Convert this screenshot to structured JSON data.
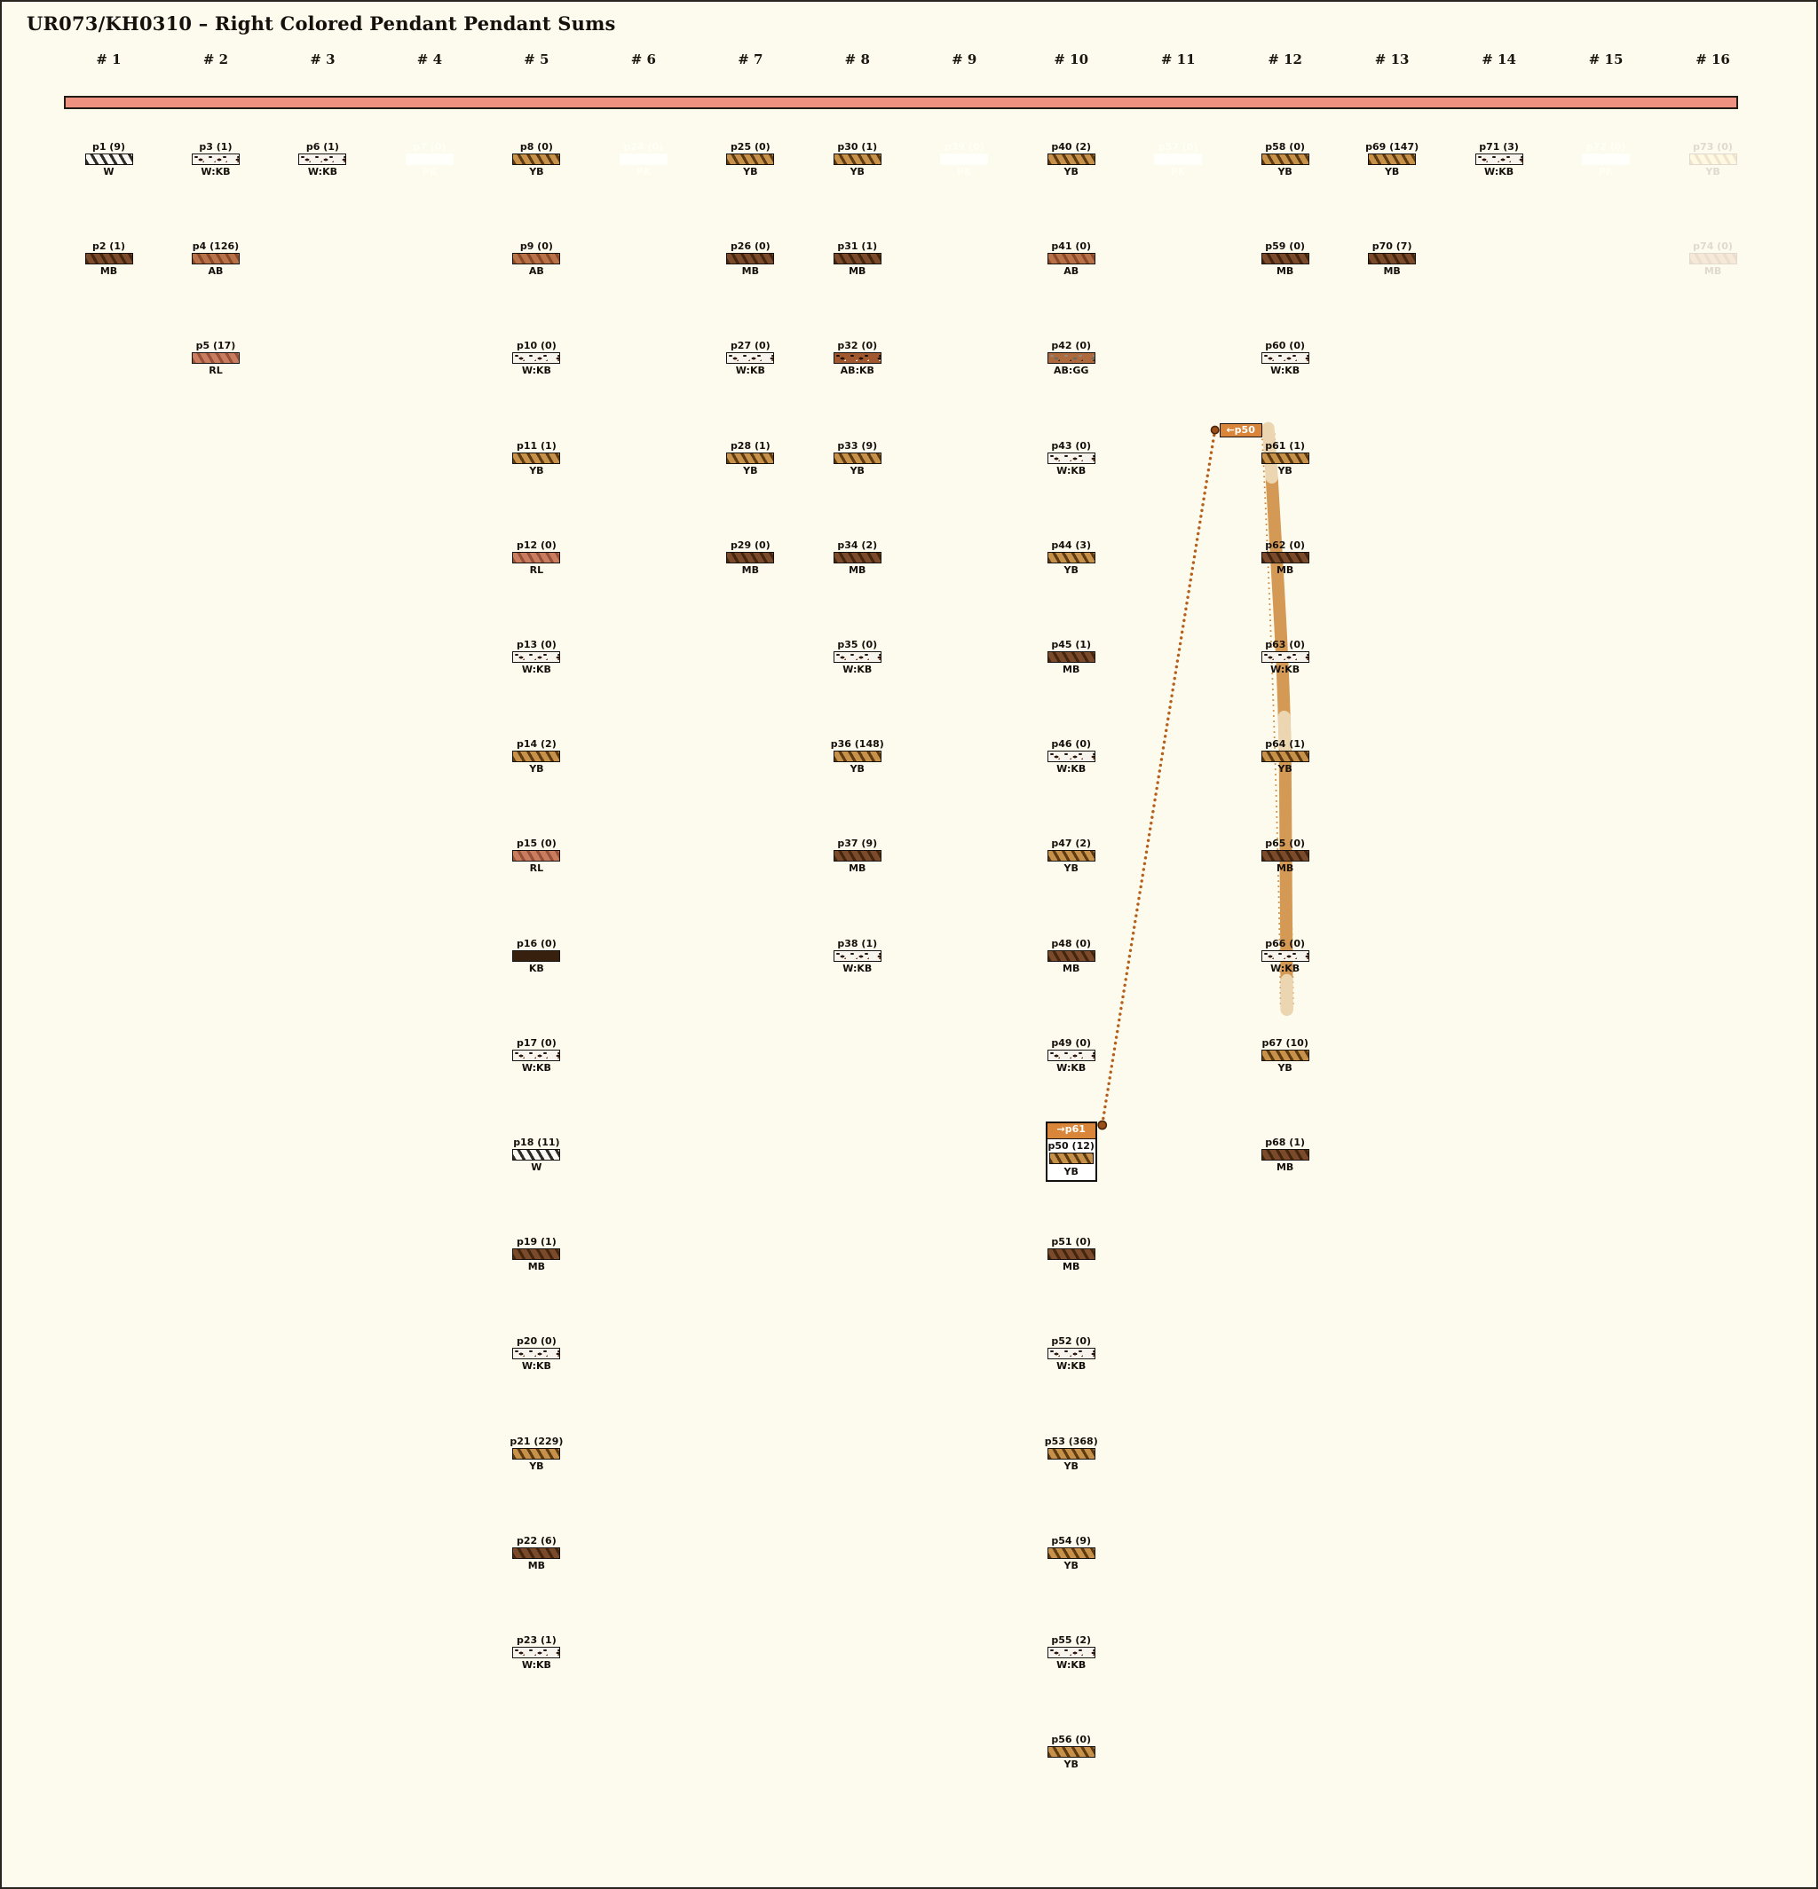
{
  "title": "UR073/KH0310 – Right Colored Pendant Pendant Sums",
  "columns": [
    "# 1",
    "# 2",
    "# 3",
    "# 4",
    "# 5",
    "# 6",
    "# 7",
    "# 8",
    "# 9",
    "# 10",
    "# 11",
    "# 12",
    "# 13",
    "# 14",
    "# 15",
    "# 16"
  ],
  "palette": {
    "background": "#fcfbee",
    "canvas_border": "#2a241e",
    "top_bar": "#ef9180",
    "tag_orange": "#d9863a",
    "connector_dotted": "#b55f1a",
    "flow_band_tan": "#d49a55",
    "flow_band_cream": "#ecd6b2",
    "band_edge_dots": "#c2741f",
    "dot_fill": "#9a4f18",
    "dot_ring": "#4c2408",
    "text_dark": "#16100c",
    "pk_text": "#e9c4b2"
  },
  "swatch_codes": {
    "W": {
      "style": "striped",
      "body": "#faf8f2",
      "stripe": "#2e2a26"
    },
    "YB": {
      "style": "striped",
      "body": "#c8914a",
      "stripe": "#5c3a12"
    },
    "MB": {
      "style": "striped",
      "body": "#7b4a2a",
      "stripe": "#44260f"
    },
    "AB": {
      "style": "striped",
      "body": "#b97148",
      "stripe": "#8a4a28"
    },
    "RL": {
      "style": "striped",
      "body": "#c97d5e",
      "stripe": "#97503a"
    },
    "KB": {
      "style": "solid",
      "body": "#38200f"
    },
    "W:KB": {
      "style": "mottled",
      "body": "#f7f4ed",
      "spots": [
        "#221510",
        "#30180e",
        "#7a3f24"
      ]
    },
    "AB:KB": {
      "style": "mottled",
      "body": "#a2582e",
      "spots": [
        "#170d06",
        "#24130a",
        "#f1e6d8"
      ]
    },
    "AB:GG": {
      "style": "mottled",
      "body": "#ae693c",
      "spots": [
        "#8f8b7e",
        "#6e6a5e",
        "#3a2514"
      ]
    },
    "PK": {
      "style": "plain",
      "body": "#f9e4da"
    }
  },
  "items": [
    {
      "id": "p1",
      "label": "p1 (9)",
      "count": 9,
      "code": "W",
      "col": 1,
      "row": 1
    },
    {
      "id": "p2",
      "label": "p2 (1)",
      "count": 1,
      "code": "MB",
      "col": 1,
      "row": 2
    },
    {
      "id": "p3",
      "label": "p3 (1)",
      "count": 1,
      "code": "W:KB",
      "col": 2,
      "row": 1
    },
    {
      "id": "p4",
      "label": "p4 (126)",
      "count": 126,
      "code": "AB",
      "col": 2,
      "row": 2
    },
    {
      "id": "p5",
      "label": "p5 (17)",
      "count": 17,
      "code": "RL",
      "col": 2,
      "row": 3
    },
    {
      "id": "p6",
      "label": "p6 (1)",
      "count": 1,
      "code": "W:KB",
      "col": 3,
      "row": 1
    },
    {
      "id": "p7",
      "label": "p7 (0)",
      "count": 0,
      "code": "PK",
      "col": 4,
      "row": 1,
      "faded": true
    },
    {
      "id": "p8",
      "label": "p8 (0)",
      "count": 0,
      "code": "YB",
      "col": 5,
      "row": 1
    },
    {
      "id": "p9",
      "label": "p9 (0)",
      "count": 0,
      "code": "AB",
      "col": 5,
      "row": 2
    },
    {
      "id": "p10",
      "label": "p10 (0)",
      "count": 0,
      "code": "W:KB",
      "col": 5,
      "row": 3
    },
    {
      "id": "p11",
      "label": "p11 (1)",
      "count": 1,
      "code": "YB",
      "col": 5,
      "row": 4
    },
    {
      "id": "p12",
      "label": "p12 (0)",
      "count": 0,
      "code": "RL",
      "col": 5,
      "row": 5
    },
    {
      "id": "p13",
      "label": "p13 (0)",
      "count": 0,
      "code": "W:KB",
      "col": 5,
      "row": 6
    },
    {
      "id": "p14",
      "label": "p14 (2)",
      "count": 2,
      "code": "YB",
      "col": 5,
      "row": 7
    },
    {
      "id": "p15",
      "label": "p15 (0)",
      "count": 0,
      "code": "RL",
      "col": 5,
      "row": 8
    },
    {
      "id": "p16",
      "label": "p16 (0)",
      "count": 0,
      "code": "KB",
      "col": 5,
      "row": 9
    },
    {
      "id": "p17",
      "label": "p17 (0)",
      "count": 0,
      "code": "W:KB",
      "col": 5,
      "row": 10
    },
    {
      "id": "p18",
      "label": "p18 (11)",
      "count": 11,
      "code": "W",
      "col": 5,
      "row": 11
    },
    {
      "id": "p19",
      "label": "p19 (1)",
      "count": 1,
      "code": "MB",
      "col": 5,
      "row": 12
    },
    {
      "id": "p20",
      "label": "p20 (0)",
      "count": 0,
      "code": "W:KB",
      "col": 5,
      "row": 13
    },
    {
      "id": "p21",
      "label": "p21 (229)",
      "count": 229,
      "code": "YB",
      "col": 5,
      "row": 14
    },
    {
      "id": "p22",
      "label": "p22 (6)",
      "count": 6,
      "code": "MB",
      "col": 5,
      "row": 15
    },
    {
      "id": "p23",
      "label": "p23 (1)",
      "count": 1,
      "code": "W:KB",
      "col": 5,
      "row": 16
    },
    {
      "id": "p24",
      "label": "p24 (0)",
      "count": 0,
      "code": "PK",
      "col": 6,
      "row": 1,
      "faded": true
    },
    {
      "id": "p25",
      "label": "p25 (0)",
      "count": 0,
      "code": "YB",
      "col": 7,
      "row": 1
    },
    {
      "id": "p26",
      "label": "p26 (0)",
      "count": 0,
      "code": "MB",
      "col": 7,
      "row": 2
    },
    {
      "id": "p27",
      "label": "p27 (0)",
      "count": 0,
      "code": "W:KB",
      "col": 7,
      "row": 3
    },
    {
      "id": "p28",
      "label": "p28 (1)",
      "count": 1,
      "code": "YB",
      "col": 7,
      "row": 4
    },
    {
      "id": "p29",
      "label": "p29 (0)",
      "count": 0,
      "code": "MB",
      "col": 7,
      "row": 5
    },
    {
      "id": "p30",
      "label": "p30 (1)",
      "count": 1,
      "code": "YB",
      "col": 8,
      "row": 1
    },
    {
      "id": "p31",
      "label": "p31 (1)",
      "count": 1,
      "code": "MB",
      "col": 8,
      "row": 2
    },
    {
      "id": "p32",
      "label": "p32 (0)",
      "count": 0,
      "code": "AB:KB",
      "col": 8,
      "row": 3
    },
    {
      "id": "p33",
      "label": "p33 (9)",
      "count": 9,
      "code": "YB",
      "col": 8,
      "row": 4
    },
    {
      "id": "p34",
      "label": "p34 (2)",
      "count": 2,
      "code": "MB",
      "col": 8,
      "row": 5
    },
    {
      "id": "p35",
      "label": "p35 (0)",
      "count": 0,
      "code": "W:KB",
      "col": 8,
      "row": 6
    },
    {
      "id": "p36",
      "label": "p36 (148)",
      "count": 148,
      "code": "YB",
      "col": 8,
      "row": 7
    },
    {
      "id": "p37",
      "label": "p37 (9)",
      "count": 9,
      "code": "MB",
      "col": 8,
      "row": 8
    },
    {
      "id": "p38",
      "label": "p38 (1)",
      "count": 1,
      "code": "W:KB",
      "col": 8,
      "row": 9
    },
    {
      "id": "p39",
      "label": "p39 (0)",
      "count": 0,
      "code": "PK",
      "col": 9,
      "row": 1,
      "faded": true
    },
    {
      "id": "p40",
      "label": "p40 (2)",
      "count": 2,
      "code": "YB",
      "col": 10,
      "row": 1
    },
    {
      "id": "p41",
      "label": "p41 (0)",
      "count": 0,
      "code": "AB",
      "col": 10,
      "row": 2
    },
    {
      "id": "p42",
      "label": "p42 (0)",
      "count": 0,
      "code": "AB:GG",
      "col": 10,
      "row": 3
    },
    {
      "id": "p43",
      "label": "p43 (0)",
      "count": 0,
      "code": "W:KB",
      "col": 10,
      "row": 4
    },
    {
      "id": "p44",
      "label": "p44 (3)",
      "count": 3,
      "code": "YB",
      "col": 10,
      "row": 5
    },
    {
      "id": "p45",
      "label": "p45 (1)",
      "count": 1,
      "code": "MB",
      "col": 10,
      "row": 6
    },
    {
      "id": "p46",
      "label": "p46 (0)",
      "count": 0,
      "code": "W:KB",
      "col": 10,
      "row": 7
    },
    {
      "id": "p47",
      "label": "p47 (2)",
      "count": 2,
      "code": "YB",
      "col": 10,
      "row": 8
    },
    {
      "id": "p48",
      "label": "p48 (0)",
      "count": 0,
      "code": "MB",
      "col": 10,
      "row": 9
    },
    {
      "id": "p49",
      "label": "p49 (0)",
      "count": 0,
      "code": "W:KB",
      "col": 10,
      "row": 10
    },
    {
      "id": "p50",
      "label": "p50 (12)",
      "count": 12,
      "code": "YB",
      "col": 10,
      "row": 11,
      "boxed": true
    },
    {
      "id": "p51",
      "label": "p51 (0)",
      "count": 0,
      "code": "MB",
      "col": 10,
      "row": 12
    },
    {
      "id": "p52",
      "label": "p52 (0)",
      "count": 0,
      "code": "W:KB",
      "col": 10,
      "row": 13
    },
    {
      "id": "p53",
      "label": "p53 (368)",
      "count": 368,
      "code": "YB",
      "col": 10,
      "row": 14
    },
    {
      "id": "p54",
      "label": "p54 (9)",
      "count": 9,
      "code": "YB",
      "col": 10,
      "row": 15
    },
    {
      "id": "p55",
      "label": "p55 (2)",
      "count": 2,
      "code": "W:KB",
      "col": 10,
      "row": 16
    },
    {
      "id": "p56",
      "label": "p56 (0)",
      "count": 0,
      "code": "YB",
      "col": 10,
      "row": 17
    },
    {
      "id": "p57",
      "label": "p57 (0)",
      "count": 0,
      "code": "PK",
      "col": 11,
      "row": 1,
      "faded": true
    },
    {
      "id": "p58",
      "label": "p58 (0)",
      "count": 0,
      "code": "YB",
      "col": 12,
      "row": 1
    },
    {
      "id": "p59",
      "label": "p59 (0)",
      "count": 0,
      "code": "MB",
      "col": 12,
      "row": 2
    },
    {
      "id": "p60",
      "label": "p60 (0)",
      "count": 0,
      "code": "W:KB",
      "col": 12,
      "row": 3
    },
    {
      "id": "p61",
      "label": "p61 (1)",
      "count": 1,
      "code": "YB",
      "col": 12,
      "row": 4
    },
    {
      "id": "p62",
      "label": "p62 (0)",
      "count": 0,
      "code": "MB",
      "col": 12,
      "row": 5
    },
    {
      "id": "p63",
      "label": "p63 (0)",
      "count": 0,
      "code": "W:KB",
      "col": 12,
      "row": 6
    },
    {
      "id": "p64",
      "label": "p64 (1)",
      "count": 1,
      "code": "YB",
      "col": 12,
      "row": 7
    },
    {
      "id": "p65",
      "label": "p65 (0)",
      "count": 0,
      "code": "MB",
      "col": 12,
      "row": 8
    },
    {
      "id": "p66",
      "label": "p66 (0)",
      "count": 0,
      "code": "W:KB",
      "col": 12,
      "row": 9
    },
    {
      "id": "p67",
      "label": "p67 (10)",
      "count": 10,
      "code": "YB",
      "col": 12,
      "row": 10
    },
    {
      "id": "p68",
      "label": "p68 (1)",
      "count": 1,
      "code": "MB",
      "col": 12,
      "row": 11
    },
    {
      "id": "p69",
      "label": "p69 (147)",
      "count": 147,
      "code": "YB",
      "col": 13,
      "row": 1
    },
    {
      "id": "p70",
      "label": "p70 (7)",
      "count": 7,
      "code": "MB",
      "col": 13,
      "row": 2
    },
    {
      "id": "p71",
      "label": "p71 (3)",
      "count": 3,
      "code": "W:KB",
      "col": 14,
      "row": 1
    },
    {
      "id": "p72",
      "label": "p72 (0)",
      "count": 0,
      "code": "PK",
      "col": 15,
      "row": 1,
      "faded": true
    },
    {
      "id": "p73",
      "label": "p73 (0)",
      "count": 0,
      "code": "YB",
      "col": 16,
      "row": 1,
      "faded": true
    },
    {
      "id": "p74",
      "label": "p74 (0)",
      "count": 0,
      "code": "MB",
      "col": 16,
      "row": 2,
      "faded": true
    }
  ],
  "connection": {
    "source_id": "p50",
    "target_id": "p61",
    "source_tag_label": "→p61",
    "target_tag_label": "←p50"
  }
}
